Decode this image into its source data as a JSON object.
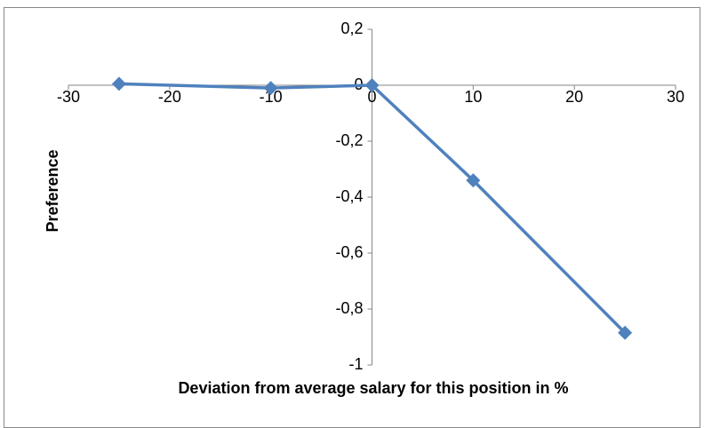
{
  "chart_data": {
    "type": "line",
    "x_label": "Deviation from average salary for this position in %",
    "y_label": "Preference",
    "x": [
      -25,
      -10,
      0,
      10,
      25
    ],
    "series": [
      {
        "name": "Preference",
        "color": "#4f81bd",
        "values": [
          0.005,
          -0.01,
          0,
          -0.34,
          -0.885
        ]
      }
    ],
    "xlim": [
      -30,
      30
    ],
    "xticks": [
      -30,
      -20,
      -10,
      0,
      10,
      20,
      30
    ],
    "ylim": [
      -1,
      0.2
    ],
    "yticks": [
      {
        "value": -1,
        "label": "-1"
      },
      {
        "value": -0.8,
        "label": "-0,8"
      },
      {
        "value": -0.6,
        "label": "-0,6"
      },
      {
        "value": -0.4,
        "label": "-0,4"
      },
      {
        "value": -0.2,
        "label": "-0,2"
      },
      0,
      {
        "value": 0.2,
        "label": "0,2"
      }
    ],
    "grid": false
  }
}
